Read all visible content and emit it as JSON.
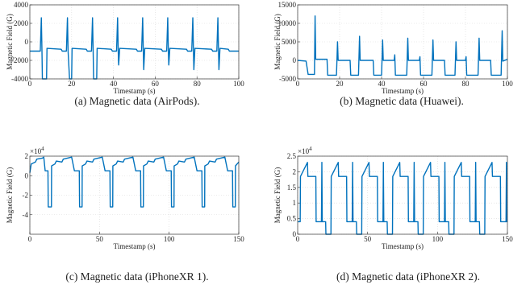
{
  "chart_data": [
    {
      "type": "line",
      "caption": "(a) Magnetic data (AirPods).",
      "xlabel": "Timestamp (s)",
      "ylabel": "Magnetic Field (G)",
      "color": "#0072bd",
      "grid": true,
      "xlim": [
        0,
        100
      ],
      "xticks": [
        0,
        20,
        40,
        60,
        80,
        100
      ],
      "ylim": [
        -4000,
        4000
      ],
      "yticks": [
        -4000,
        -2000,
        0,
        2000,
        4000
      ],
      "x": [
        0,
        5,
        5.5,
        5.8,
        6,
        8,
        8.2,
        15,
        15.5,
        17.5,
        18,
        18.3,
        19,
        20,
        20.2,
        27,
        27.5,
        29.5,
        30,
        30.3,
        30.5,
        32,
        32.2,
        39,
        39.5,
        41.5,
        42,
        42.3,
        42.5,
        43,
        51,
        51.5,
        53.5,
        54,
        54.3,
        54.5,
        55,
        63,
        63.5,
        65.5,
        66,
        66.3,
        66.5,
        67,
        75,
        75.5,
        77.5,
        78,
        78.3,
        78.5,
        79,
        87,
        87.5,
        89.5,
        90,
        90.3,
        90.5,
        91,
        95,
        95.5,
        100
      ],
      "values": [
        -1000,
        -1000,
        2600,
        -1000,
        -4000,
        -4000,
        -700,
        -800,
        -1000,
        -1000,
        2600,
        -1000,
        -4000,
        -4000,
        -700,
        -800,
        -1000,
        -1000,
        2600,
        -1000,
        -4000,
        -4000,
        -700,
        -800,
        -1000,
        -1000,
        2600,
        -1000,
        -2500,
        -700,
        -800,
        -1000,
        -1000,
        2600,
        -1000,
        -3000,
        -700,
        -800,
        -1000,
        -1000,
        2600,
        -1000,
        -2500,
        -700,
        -800,
        -1000,
        -1000,
        2600,
        -1000,
        -3000,
        -700,
        -800,
        -1000,
        -1000,
        2600,
        -1000,
        -3000,
        -700,
        -800,
        -1000,
        -1000
      ]
    },
    {
      "type": "line",
      "caption": "(b) Magnetic data (Huawei).",
      "xlabel": "Timestamp (s)",
      "ylabel": "Magnetic Field (G)",
      "color": "#0072bd",
      "grid": true,
      "xlim": [
        0,
        100
      ],
      "xticks": [
        0,
        20,
        40,
        60,
        80,
        100
      ],
      "ylim": [
        -5000,
        15000
      ],
      "yticks": [
        -5000,
        0,
        5000,
        10000,
        15000
      ],
      "x": [
        0,
        4,
        5,
        8,
        8.3,
        8.6,
        14,
        14.3,
        18.5,
        19,
        19.3,
        25,
        25.3,
        29,
        29.5,
        29.8,
        36,
        36.3,
        40,
        40.5,
        40.8,
        46,
        46.3,
        46.6,
        52,
        52.5,
        52.8,
        58,
        58.3,
        58.6,
        64,
        64.5,
        64.8,
        70,
        70.3,
        75,
        75.5,
        75.8,
        80,
        80.3,
        80.6,
        86,
        86.5,
        86.8,
        92,
        92.3,
        97,
        97.5,
        97.8,
        100
      ],
      "values": [
        0,
        -200,
        -3800,
        -3800,
        12000,
        300,
        300,
        -4000,
        -4000,
        5000,
        0,
        0,
        -4000,
        -4000,
        6500,
        0,
        0,
        -4000,
        -4000,
        5500,
        0,
        0,
        1500,
        -4000,
        -4000,
        6000,
        0,
        0,
        1000,
        -4000,
        -4000,
        5500,
        0,
        0,
        -4000,
        -4000,
        5000,
        0,
        0,
        1000,
        -4000,
        -4000,
        6000,
        0,
        0,
        -4000,
        -4000,
        8000,
        -200,
        300
      ]
    },
    {
      "type": "line",
      "caption": "(c) Magnetic data (iPhoneXR 1).",
      "xlabel": "Timestamp (s)",
      "ylabel": "Magnetic Field (G)",
      "y_multiplier": "×10",
      "y_multiplier_exp": "4",
      "color": "#0072bd",
      "grid": true,
      "xlim": [
        0,
        150
      ],
      "xticks": [
        0,
        50,
        100,
        150
      ],
      "ylim": [
        -6,
        2
      ],
      "yticks": [
        -4,
        -2,
        0,
        2
      ],
      "x": [
        0,
        1,
        4,
        5,
        9,
        10,
        11,
        13,
        13.2,
        15.5,
        15.6,
        18,
        19,
        23,
        24,
        30,
        32,
        35.5,
        35.7,
        37.5,
        37.6,
        40,
        41,
        45,
        46,
        52,
        54,
        57.5,
        57.7,
        59.5,
        59.6,
        62,
        63,
        67,
        68,
        74,
        76,
        79.5,
        79.7,
        81.5,
        81.6,
        84,
        85,
        89,
        90,
        96,
        98,
        101.5,
        101.7,
        103.5,
        103.6,
        106,
        107,
        111,
        112,
        118,
        120,
        123.5,
        123.7,
        125.5,
        125.6,
        128,
        129,
        133,
        134,
        140,
        142,
        145.5,
        145.7,
        147.5,
        147.6,
        150
      ],
      "values": [
        0.3,
        1.2,
        1.4,
        1.7,
        1.8,
        1.9,
        0.5,
        0.5,
        -3.2,
        -3.2,
        1.0,
        1.2,
        1.5,
        1.4,
        1.7,
        1.9,
        0.5,
        0.5,
        -3.2,
        -3.2,
        1.0,
        1.2,
        1.5,
        1.4,
        1.7,
        1.9,
        0.5,
        0.5,
        -3.2,
        -3.2,
        1.0,
        1.2,
        1.5,
        1.4,
        1.7,
        1.9,
        0.5,
        0.5,
        -3.2,
        -3.2,
        1.0,
        1.2,
        1.5,
        1.4,
        1.7,
        1.9,
        0.5,
        0.5,
        -3.2,
        -3.2,
        1.0,
        1.2,
        1.5,
        1.4,
        1.7,
        1.9,
        0.5,
        0.5,
        -3.2,
        -3.2,
        1.0,
        1.2,
        1.5,
        1.4,
        1.7,
        1.9,
        0.5,
        0.5,
        -3.2,
        -3.2,
        1.0,
        1.4
      ]
    },
    {
      "type": "line",
      "caption": "(d) Magnetic data (iPhoneXR 2).",
      "xlabel": "Timestamp (s)",
      "ylabel": "Magnetic Field (G)",
      "y_multiplier": "×10",
      "y_multiplier_exp": "4",
      "color": "#0072bd",
      "grid": true,
      "xlim": [
        0,
        150
      ],
      "xticks": [
        0,
        50,
        100,
        150
      ],
      "ylim": [
        0,
        2.5
      ],
      "yticks": [
        0,
        0.5,
        1,
        1.5,
        2,
        2.5
      ],
      "x": [
        0,
        1.8,
        2,
        7,
        7.3,
        13,
        13.2,
        17,
        17.3,
        17.6,
        20,
        20.2,
        23.8,
        24,
        29,
        29.3,
        35,
        35.2,
        39,
        39.3,
        39.6,
        42,
        42.2,
        45.8,
        46,
        51,
        51.3,
        57,
        57.2,
        61,
        61.3,
        61.6,
        64,
        64.2,
        67.8,
        68,
        73,
        73.3,
        79,
        79.2,
        83,
        83.3,
        83.6,
        86,
        86.2,
        89.8,
        90,
        95,
        95.3,
        101,
        101.2,
        105,
        105.3,
        105.6,
        108,
        108.2,
        111.8,
        112,
        117,
        117.3,
        123,
        123.2,
        127,
        127.3,
        127.6,
        130,
        130.2,
        133.8,
        134,
        139,
        139.3,
        145,
        145.2,
        149,
        149.3,
        149.6,
        150
      ],
      "values": [
        0.4,
        0.4,
        1.85,
        2.3,
        1.85,
        1.85,
        0.4,
        0.4,
        2.3,
        0.4,
        0.4,
        0,
        0,
        1.85,
        2.3,
        1.85,
        1.85,
        0.4,
        0.4,
        2.3,
        0.4,
        0.4,
        0,
        0,
        1.85,
        2.3,
        1.85,
        1.85,
        0.4,
        0.4,
        2.3,
        0.4,
        0.4,
        0,
        0,
        1.85,
        2.3,
        1.85,
        1.85,
        0.4,
        0.4,
        2.3,
        0.4,
        0.4,
        0,
        0,
        1.85,
        2.3,
        1.85,
        1.85,
        0.4,
        0.4,
        2.3,
        0.4,
        0.4,
        0,
        0,
        1.85,
        2.3,
        1.85,
        1.85,
        0.4,
        0.4,
        2.3,
        0.4,
        0.4,
        0,
        0,
        1.85,
        2.3,
        1.85,
        1.85,
        0.4,
        0.4,
        2.3,
        0.4,
        0.4
      ]
    }
  ]
}
